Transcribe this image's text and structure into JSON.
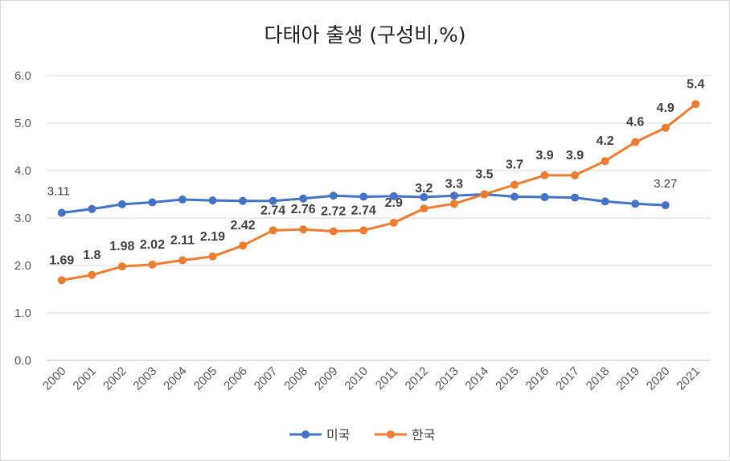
{
  "chart_data": {
    "type": "line",
    "title": "다태아 출생 (구성비,%)",
    "xlabel": "",
    "ylabel": "",
    "ylim": [
      0,
      6
    ],
    "yticks": [
      "0.0",
      "1.0",
      "2.0",
      "3.0",
      "4.0",
      "5.0",
      "6.0"
    ],
    "grid": true,
    "legend_position": "bottom",
    "x": [
      "2000",
      "2001",
      "2002",
      "2003",
      "2004",
      "2005",
      "2006",
      "2007",
      "2008",
      "2009",
      "2010",
      "2011",
      "2012",
      "2013",
      "2014",
      "2015",
      "2016",
      "2017",
      "2018",
      "2019",
      "2020",
      "2021"
    ],
    "series": [
      {
        "name": "미국",
        "color": "#4472c4",
        "values": [
          3.11,
          3.19,
          3.29,
          3.33,
          3.39,
          3.37,
          3.36,
          3.36,
          3.41,
          3.47,
          3.45,
          3.46,
          3.44,
          3.47,
          3.5,
          3.45,
          3.44,
          3.43,
          3.35,
          3.3,
          3.27,
          null
        ],
        "data_labels": {
          "0": "3.11",
          "20": "3.27"
        }
      },
      {
        "name": "한국",
        "color": "#ed7d31",
        "values": [
          1.69,
          1.8,
          1.98,
          2.02,
          2.11,
          2.19,
          2.42,
          2.74,
          2.76,
          2.72,
          2.74,
          2.9,
          3.2,
          3.3,
          3.5,
          3.7,
          3.9,
          3.9,
          4.2,
          4.6,
          4.9,
          5.4
        ],
        "data_labels": {
          "0": "1.69",
          "1": "1.8",
          "2": "1.98",
          "3": "2.02",
          "4": "2.11",
          "5": "2.19",
          "6": "2.42",
          "7": "2.74",
          "8": "2.76",
          "9": "2.72",
          "10": "2.74",
          "11": "2.9",
          "12": "3.2",
          "13": "3.3",
          "14": "3.5",
          "15": "3.7",
          "16": "3.9",
          "17": "3.9",
          "18": "4.2",
          "19": "4.6",
          "20": "4.9",
          "21": "5.4"
        }
      }
    ]
  }
}
